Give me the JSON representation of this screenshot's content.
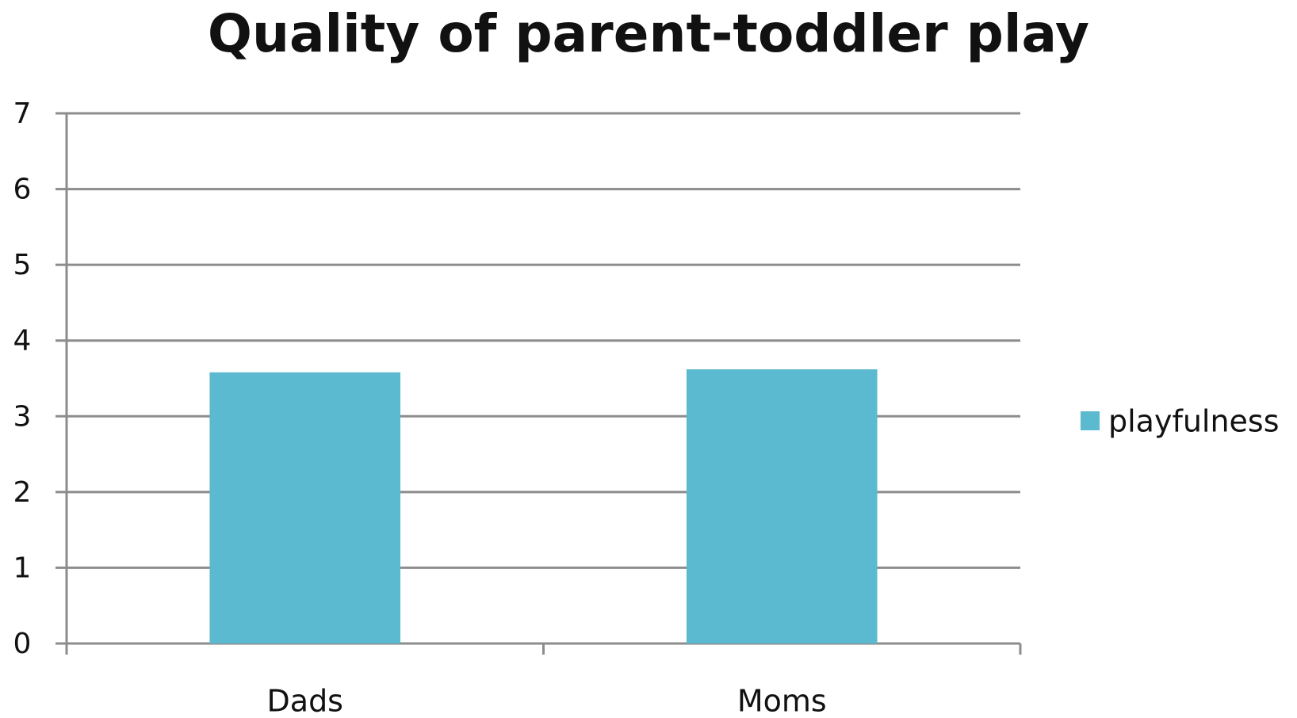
{
  "chart_data": {
    "type": "bar",
    "title": "Quality of parent-toddler play",
    "categories": [
      "Dads",
      "Moms"
    ],
    "series": [
      {
        "name": "playfulness",
        "color": "#5bb9d0",
        "values": [
          3.58,
          3.62
        ]
      }
    ],
    "ylim": [
      0,
      7
    ],
    "yticks": [
      0,
      1,
      2,
      3,
      4,
      5,
      6,
      7
    ],
    "grid": true,
    "legend": "right"
  }
}
